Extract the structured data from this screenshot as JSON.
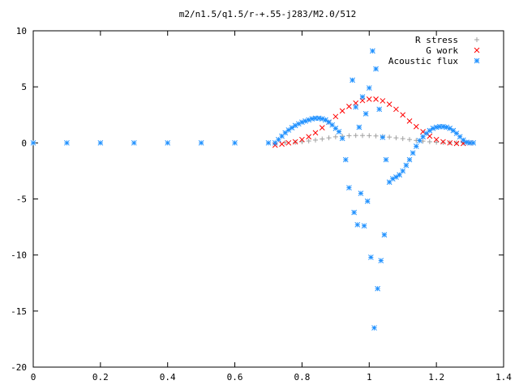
{
  "chart_data": {
    "type": "scatter",
    "title": "m2/n1.5/q1.5/r-+.55-j283/M2.0/512",
    "xlabel": "",
    "ylabel": "",
    "xlim": [
      0,
      1.4
    ],
    "ylim": [
      -20,
      10
    ],
    "xticks": [
      0,
      0.2,
      0.4,
      0.6,
      0.8,
      1,
      1.2,
      1.4
    ],
    "yticks": [
      -20,
      -15,
      -10,
      -5,
      0,
      5,
      10
    ],
    "grid": false,
    "legend": "top-right",
    "series": [
      {
        "name": "R stress",
        "marker": "plus",
        "color": "#a0a0a0",
        "x": [
          0.72,
          0.75,
          0.78,
          0.8,
          0.82,
          0.84,
          0.86,
          0.88,
          0.9,
          0.92,
          0.94,
          0.96,
          0.98,
          1.0,
          1.02,
          1.04,
          1.06,
          1.08,
          1.1,
          1.12,
          1.14,
          1.16,
          1.18,
          1.2,
          1.22,
          1.24,
          1.26,
          1.28,
          1.3
        ],
        "y": [
          0.0,
          0.02,
          0.05,
          0.1,
          0.17,
          0.25,
          0.35,
          0.45,
          0.54,
          0.6,
          0.64,
          0.66,
          0.66,
          0.65,
          0.62,
          0.58,
          0.52,
          0.45,
          0.38,
          0.3,
          0.22,
          0.16,
          0.1,
          0.06,
          0.03,
          0.02,
          0.01,
          0.0,
          0.0
        ]
      },
      {
        "name": "G work",
        "marker": "cross",
        "color": "#ff0000",
        "x": [
          0.72,
          0.74,
          0.76,
          0.78,
          0.8,
          0.82,
          0.84,
          0.86,
          0.88,
          0.9,
          0.92,
          0.94,
          0.96,
          0.98,
          1.0,
          1.02,
          1.04,
          1.06,
          1.08,
          1.1,
          1.12,
          1.14,
          1.16,
          1.18,
          1.2,
          1.22,
          1.24,
          1.26,
          1.28,
          1.3
        ],
        "y": [
          -0.2,
          -0.1,
          0.0,
          0.1,
          0.3,
          0.55,
          0.9,
          1.35,
          1.85,
          2.35,
          2.85,
          3.25,
          3.55,
          3.78,
          3.9,
          3.9,
          3.75,
          3.45,
          3.0,
          2.5,
          1.95,
          1.45,
          1.0,
          0.6,
          0.3,
          0.1,
          0.0,
          -0.05,
          -0.05,
          0.0
        ]
      },
      {
        "name": "Acoustic flux",
        "marker": "star",
        "color": "#1e90ff",
        "x": [
          0.0,
          0.1,
          0.2,
          0.3,
          0.4,
          0.5,
          0.6,
          0.7,
          0.72,
          0.73,
          0.74,
          0.75,
          0.76,
          0.77,
          0.78,
          0.79,
          0.8,
          0.81,
          0.82,
          0.83,
          0.84,
          0.85,
          0.86,
          0.87,
          0.88,
          0.89,
          0.9,
          0.91,
          0.92,
          0.93,
          0.94,
          0.95,
          0.955,
          0.96,
          0.965,
          0.97,
          0.975,
          0.98,
          0.985,
          0.99,
          0.995,
          1.0,
          1.005,
          1.01,
          1.015,
          1.02,
          1.025,
          1.03,
          1.035,
          1.04,
          1.045,
          1.05,
          1.06,
          1.07,
          1.08,
          1.09,
          1.1,
          1.11,
          1.12,
          1.13,
          1.14,
          1.15,
          1.16,
          1.17,
          1.18,
          1.19,
          1.2,
          1.21,
          1.22,
          1.23,
          1.24,
          1.25,
          1.26,
          1.27,
          1.28,
          1.29,
          1.3,
          1.31
        ],
        "y": [
          0,
          0,
          0,
          0,
          0,
          0,
          0,
          0,
          0.0,
          0.3,
          0.6,
          0.9,
          1.15,
          1.35,
          1.55,
          1.7,
          1.85,
          1.95,
          2.05,
          2.15,
          2.2,
          2.2,
          2.15,
          2.05,
          1.85,
          1.6,
          1.3,
          1.0,
          0.4,
          -1.5,
          -4.0,
          5.6,
          -6.2,
          3.2,
          -7.3,
          1.4,
          -4.5,
          4.1,
          -7.4,
          2.6,
          -5.2,
          4.9,
          -10.2,
          8.2,
          -16.5,
          6.6,
          -13.0,
          3.0,
          -10.5,
          0.5,
          -8.2,
          -1.5,
          -3.5,
          -3.2,
          -3.05,
          -2.85,
          -2.5,
          -2.0,
          -1.5,
          -0.9,
          -0.3,
          0.2,
          0.55,
          0.85,
          1.1,
          1.3,
          1.4,
          1.45,
          1.45,
          1.4,
          1.3,
          1.1,
          0.85,
          0.55,
          0.25,
          0.05,
          0.0,
          0.0
        ]
      }
    ]
  }
}
